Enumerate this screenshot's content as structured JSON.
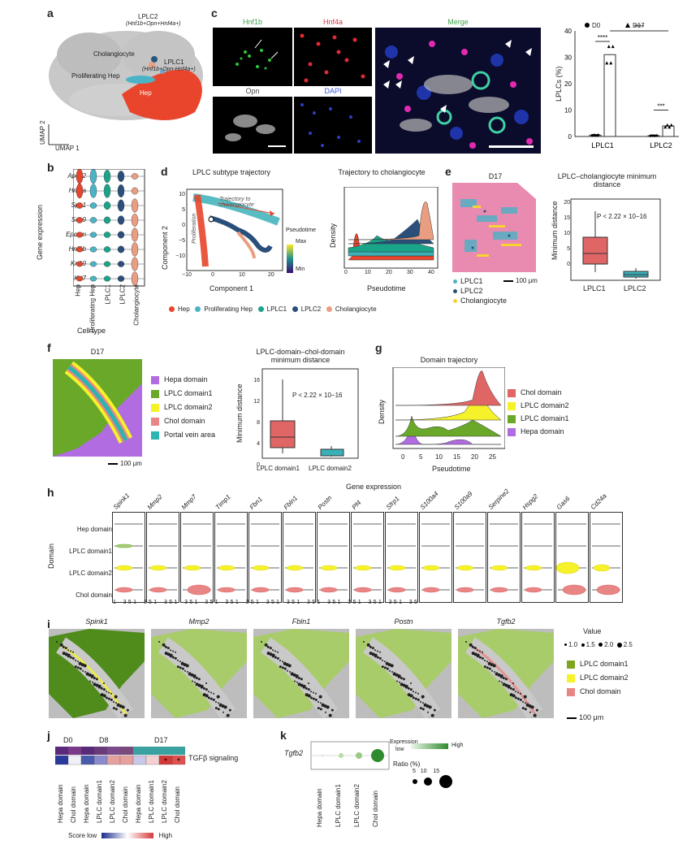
{
  "panel_letters": {
    "a": "a",
    "b": "b",
    "c": "c",
    "d": "d",
    "e": "e",
    "f": "f",
    "g": "g",
    "h": "h",
    "i": "i",
    "j": "j",
    "k": "k"
  },
  "panel_a": {
    "clusters": {
      "lplc2": "LPLC2",
      "lplc2_markers": "(Hnf1b+Opn+Hnf4a+)",
      "cholangiocyte": "Cholangiocyte",
      "lplc1": "LPLC1",
      "lplc1_markers": "(Hnf1b+Opn-Hnf4a+)",
      "prolif": "Proliferating Hep",
      "hep": "Hep"
    },
    "axis_y": "UMAP 2",
    "axis_x": "UMAP 1"
  },
  "panel_b": {
    "genes": [
      "Apoc2",
      "Hnf4a",
      "Spp1",
      "Sox9",
      "Epcam",
      "Hnf1b",
      "Krt19",
      "Krt7"
    ],
    "cell_types": [
      "Hep",
      "Proliferating Hep",
      "LPLC1",
      "LPLC2",
      "Cholangiocyte"
    ],
    "ylabel": "Gene expression",
    "xlabel": "Cell type"
  },
  "panel_c": {
    "images": {
      "hnf1b": "Hnf1b",
      "hnf4a": "Hnf4a",
      "opn": "Opn",
      "dapi": "DAPI",
      "merge": "Merge"
    },
    "chart_data": {
      "type": "bar",
      "categories": [
        "LPLC1",
        "LPLC2"
      ],
      "series": [
        {
          "name": "D0",
          "values": [
            0.5,
            0.3
          ]
        },
        {
          "name": "D17",
          "values": [
            31,
            4
          ]
        }
      ],
      "ylabel": "LPLCs (%)",
      "ylim": [
        0,
        40
      ],
      "yticks": [
        "0",
        "10",
        "20",
        "30",
        "40"
      ],
      "legend": [
        "D0",
        "D17"
      ],
      "significance": [
        "****",
        "****",
        "***"
      ]
    }
  },
  "panel_d": {
    "left_title": "LPLC subtype trajectory",
    "ylabel": "Component 2",
    "xlabel": "Component 1",
    "yticks": [
      "10",
      "5",
      "0",
      "−5",
      "−10"
    ],
    "xticks": [
      "−10",
      "0",
      "10",
      "20"
    ],
    "traj_label": "Trajectory to cholangiocyte",
    "prolif_label": "Proliferation",
    "pseudotime": "Pseudotime",
    "max": "Max",
    "min": "Min",
    "right_title": "Trajectory to cholangiocyte",
    "density": "Density",
    "pt_ticks": [
      "0",
      "10",
      "20",
      "30",
      "40"
    ],
    "legend": [
      "Hep",
      "Proliferating Hep",
      "LPLC1",
      "LPLC2",
      "Cholangiocyte"
    ]
  },
  "panel_e": {
    "title": "D17",
    "legend": [
      "LPLC1",
      "LPLC2",
      "Cholangiocyte"
    ],
    "scale": "100 μm",
    "box_title": "LPLC–cholangiocyte minimum distance",
    "pval": "P < 2.22 × 10−16",
    "ylabel": "Minimum distance",
    "yticks": [
      "20",
      "15",
      "10",
      "5",
      "0"
    ],
    "cats": [
      "LPLC1",
      "LPLC2"
    ]
  },
  "panel_f": {
    "title": "D17",
    "legend": [
      "Hepa domain",
      "LPLC domain1",
      "LPLC domain2",
      "Chol domain",
      "Portal vein area"
    ],
    "scale": "100 μm",
    "box_title": "LPLC-domain–chol-domain minimum distance",
    "pval": "P < 2.22 × 10−16",
    "ylabel": "Minimum distance",
    "yticks": [
      "16",
      "12",
      "8",
      "4",
      "0"
    ],
    "cats": [
      "LPLC domain1",
      "LPLC domain2"
    ]
  },
  "panel_g": {
    "title": "Domain trajectory",
    "density": "Density",
    "xlabel": "Pseudotime",
    "xticks": [
      "0",
      "5",
      "10",
      "15",
      "20",
      "25"
    ],
    "legend": [
      "Chol domain",
      "LPLC domain2",
      "LPLC domain1",
      "Hepa domain"
    ]
  },
  "panel_h": {
    "title": "Gene expression",
    "genes": [
      "Spink1",
      "Mmp2",
      "Mmp7",
      "Timp1",
      "Fbn1",
      "Fbln1",
      "Postn",
      "Pf4",
      "Sfrp1",
      "S100a4",
      "S100a9",
      "Serpine2",
      "Hspg2",
      "Gas6",
      "Cd24a"
    ],
    "domains": [
      "Hep domain",
      "LPLC domain1",
      "LPLC domain2",
      "Chol domain"
    ],
    "ylabel": "Domain",
    "tick_row": "1    3 5 1    3 5 1    3 5 1    3 5 1    3 5 1    3 5 1    3 5 1    3 5 1    3 5 1    3 5 1    3 5 1    3 5 1    3 5 1    3 5 1    3 5"
  },
  "panel_i": {
    "genes": [
      "Spink1",
      "Mmp2",
      "Fbln1",
      "Postn",
      "Tgfb2"
    ],
    "value_title": "Value",
    "values": [
      "1.0",
      "1.5",
      "2.0",
      "2.5"
    ],
    "legend": [
      "LPLC domain1",
      "LPLC domain2",
      "Chol domain"
    ],
    "scale": "100 μm"
  },
  "panel_j": {
    "groups": [
      "D0",
      "D8",
      "D17"
    ],
    "row_label": "TGFβ signaling",
    "cols": [
      "Hepa domain",
      "Chol domain",
      "Hepa domain",
      "LPLC domain1",
      "LPLC domain2",
      "Chol domain",
      "Hepa domain",
      "LPLC domain1",
      "LPLC domain2",
      "Chol domain"
    ],
    "score_low": "Score low",
    "high": "High",
    "stars": [
      "*",
      "*"
    ]
  },
  "panel_k": {
    "gene": "Tgfb2",
    "cols": [
      "Hepa domain",
      "LPLC domain1",
      "LPLC domain2",
      "Chol domain"
    ],
    "expr_title": "Expression",
    "expr_low": "low",
    "expr_high": "High",
    "ratio_title": "Ratio (%)",
    "ratio_ticks": [
      "5",
      "10",
      "15"
    ]
  }
}
